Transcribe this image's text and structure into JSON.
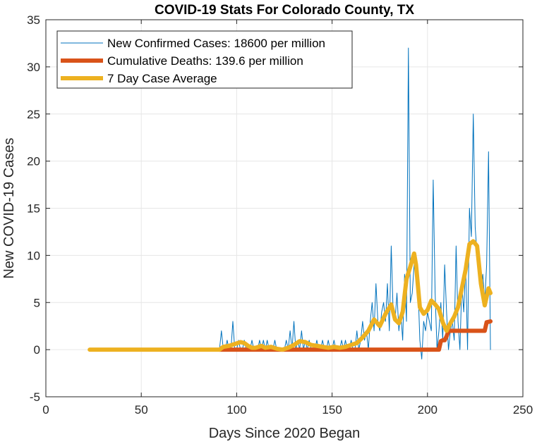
{
  "chart_data": {
    "type": "line",
    "title": "COVID-19 Stats For Colorado County, TX",
    "xlabel": "Days Since 2020 Began",
    "ylabel": "New COVID-19 Cases",
    "xlim": [
      0,
      250
    ],
    "ylim": [
      -5,
      35
    ],
    "xticks": [
      0,
      50,
      100,
      150,
      200,
      250
    ],
    "yticks": [
      -5,
      0,
      5,
      10,
      15,
      20,
      25,
      30,
      35
    ],
    "grid": true,
    "legend_position": "top-left",
    "series": [
      {
        "name": "New Confirmed Cases: 18600 per million",
        "color": "#0072bd",
        "points": [
          [
            23,
            0
          ],
          [
            30,
            0
          ],
          [
            40,
            0
          ],
          [
            50,
            0
          ],
          [
            60,
            0
          ],
          [
            70,
            0
          ],
          [
            80,
            0
          ],
          [
            90,
            0
          ],
          [
            91,
            0
          ],
          [
            92,
            2
          ],
          [
            93,
            0
          ],
          [
            94,
            0
          ],
          [
            95,
            1
          ],
          [
            96,
            0
          ],
          [
            97,
            0
          ],
          [
            98,
            3
          ],
          [
            99,
            0
          ],
          [
            100,
            0
          ],
          [
            101,
            1
          ],
          [
            102,
            0
          ],
          [
            103,
            0
          ],
          [
            104,
            1
          ],
          [
            105,
            0
          ],
          [
            106,
            0
          ],
          [
            107,
            0
          ],
          [
            108,
            1
          ],
          [
            109,
            0
          ],
          [
            110,
            0
          ],
          [
            111,
            0
          ],
          [
            112,
            1
          ],
          [
            113,
            0
          ],
          [
            114,
            1
          ],
          [
            115,
            0
          ],
          [
            116,
            1
          ],
          [
            117,
            0
          ],
          [
            118,
            0
          ],
          [
            119,
            0
          ],
          [
            120,
            1
          ],
          [
            121,
            0
          ],
          [
            122,
            0
          ],
          [
            123,
            0
          ],
          [
            124,
            0
          ],
          [
            125,
            0
          ],
          [
            126,
            1
          ],
          [
            127,
            0
          ],
          [
            128,
            2
          ],
          [
            129,
            0
          ],
          [
            130,
            3
          ],
          [
            131,
            0
          ],
          [
            132,
            1
          ],
          [
            133,
            0
          ],
          [
            134,
            2
          ],
          [
            135,
            0
          ],
          [
            136,
            1
          ],
          [
            137,
            0
          ],
          [
            138,
            1
          ],
          [
            139,
            0
          ],
          [
            140,
            0
          ],
          [
            141,
            0
          ],
          [
            142,
            1
          ],
          [
            143,
            0
          ],
          [
            144,
            0
          ],
          [
            145,
            1
          ],
          [
            146,
            0
          ],
          [
            147,
            0
          ],
          [
            148,
            1
          ],
          [
            149,
            0
          ],
          [
            150,
            0
          ],
          [
            151,
            1
          ],
          [
            152,
            0
          ],
          [
            153,
            0
          ],
          [
            154,
            0
          ],
          [
            155,
            1
          ],
          [
            156,
            0
          ],
          [
            157,
            1
          ],
          [
            158,
            0
          ],
          [
            159,
            0
          ],
          [
            160,
            1
          ],
          [
            161,
            0
          ],
          [
            162,
            0
          ],
          [
            163,
            2
          ],
          [
            164,
            0
          ],
          [
            165,
            1
          ],
          [
            166,
            3
          ],
          [
            167,
            1
          ],
          [
            168,
            2
          ],
          [
            169,
            0
          ],
          [
            170,
            3
          ],
          [
            171,
            5
          ],
          [
            172,
            2
          ],
          [
            173,
            7
          ],
          [
            174,
            3
          ],
          [
            175,
            2
          ],
          [
            176,
            4
          ],
          [
            177,
            5
          ],
          [
            178,
            3
          ],
          [
            179,
            7
          ],
          [
            180,
            2
          ],
          [
            181,
            11
          ],
          [
            182,
            4
          ],
          [
            183,
            3
          ],
          [
            184,
            6
          ],
          [
            185,
            2
          ],
          [
            186,
            4
          ],
          [
            187,
            1
          ],
          [
            188,
            8
          ],
          [
            189,
            3
          ],
          [
            190,
            32
          ],
          [
            191,
            5
          ],
          [
            192,
            6
          ],
          [
            193,
            9
          ],
          [
            194,
            10
          ],
          [
            195,
            7
          ],
          [
            196,
            1
          ],
          [
            197,
            -1
          ],
          [
            198,
            3
          ],
          [
            199,
            2
          ],
          [
            200,
            4
          ],
          [
            201,
            3
          ],
          [
            202,
            2
          ],
          [
            203,
            18
          ],
          [
            204,
            6
          ],
          [
            205,
            0
          ],
          [
            206,
            2
          ],
          [
            207,
            5
          ],
          [
            208,
            1
          ],
          [
            209,
            9
          ],
          [
            210,
            4
          ],
          [
            211,
            0
          ],
          [
            212,
            2
          ],
          [
            213,
            3
          ],
          [
            214,
            1
          ],
          [
            215,
            11
          ],
          [
            216,
            3
          ],
          [
            217,
            0
          ],
          [
            218,
            7
          ],
          [
            219,
            4
          ],
          [
            220,
            9
          ],
          [
            221,
            0
          ],
          [
            222,
            15
          ],
          [
            223,
            12
          ],
          [
            224,
            25
          ],
          [
            225,
            13
          ],
          [
            226,
            10
          ],
          [
            227,
            9
          ],
          [
            228,
            6
          ],
          [
            229,
            8
          ],
          [
            230,
            5
          ],
          [
            231,
            9
          ],
          [
            232,
            21
          ],
          [
            233,
            0
          ]
        ]
      },
      {
        "name": "Cumulative Deaths: 139.6 per million",
        "color": "#d95319",
        "points": [
          [
            91,
            0
          ],
          [
            206,
            0
          ],
          [
            207,
            0.9
          ],
          [
            208,
            1
          ],
          [
            209,
            1
          ],
          [
            210,
            1.4
          ],
          [
            211,
            2
          ],
          [
            230,
            2
          ],
          [
            231,
            2.9
          ],
          [
            233,
            3
          ]
        ]
      },
      {
        "name": "7 Day Case Average",
        "color": "#edb120",
        "points": [
          [
            23,
            0
          ],
          [
            40,
            0
          ],
          [
            60,
            0
          ],
          [
            80,
            0
          ],
          [
            91,
            0
          ],
          [
            93,
            0.3
          ],
          [
            96,
            0.4
          ],
          [
            99,
            0.6
          ],
          [
            102,
            0.8
          ],
          [
            104,
            0.7
          ],
          [
            106,
            0.4
          ],
          [
            108,
            0.2
          ],
          [
            110,
            0.2
          ],
          [
            113,
            0.4
          ],
          [
            115,
            0.2
          ],
          [
            118,
            0.3
          ],
          [
            121,
            0.1
          ],
          [
            124,
            0
          ],
          [
            127,
            0.2
          ],
          [
            130,
            0.5
          ],
          [
            133,
            0.9
          ],
          [
            136,
            0.8
          ],
          [
            139,
            0.5
          ],
          [
            142,
            0.4
          ],
          [
            145,
            0.3
          ],
          [
            148,
            0.2
          ],
          [
            151,
            0.3
          ],
          [
            154,
            0.2
          ],
          [
            157,
            0.3
          ],
          [
            160,
            0.5
          ],
          [
            163,
            0.7
          ],
          [
            166,
            1.3
          ],
          [
            169,
            2.0
          ],
          [
            172,
            3.2
          ],
          [
            175,
            2.5
          ],
          [
            178,
            3.8
          ],
          [
            181,
            4.8
          ],
          [
            183,
            3.2
          ],
          [
            185,
            2.8
          ],
          [
            187,
            4.0
          ],
          [
            189,
            7.5
          ],
          [
            191,
            8.8
          ],
          [
            193,
            10.2
          ],
          [
            194,
            9.0
          ],
          [
            196,
            4.5
          ],
          [
            198,
            3.8
          ],
          [
            200,
            4.2
          ],
          [
            202,
            5.2
          ],
          [
            204,
            4.8
          ],
          [
            206,
            4.3
          ],
          [
            208,
            2.9
          ],
          [
            210,
            2.0
          ],
          [
            212,
            2.8
          ],
          [
            214,
            3.5
          ],
          [
            216,
            4.5
          ],
          [
            218,
            6.5
          ],
          [
            220,
            8.5
          ],
          [
            222,
            11.2
          ],
          [
            224,
            11.5
          ],
          [
            226,
            11.0
          ],
          [
            228,
            7.0
          ],
          [
            230,
            4.7
          ],
          [
            232,
            6.5
          ],
          [
            233,
            6.0
          ]
        ]
      }
    ]
  }
}
